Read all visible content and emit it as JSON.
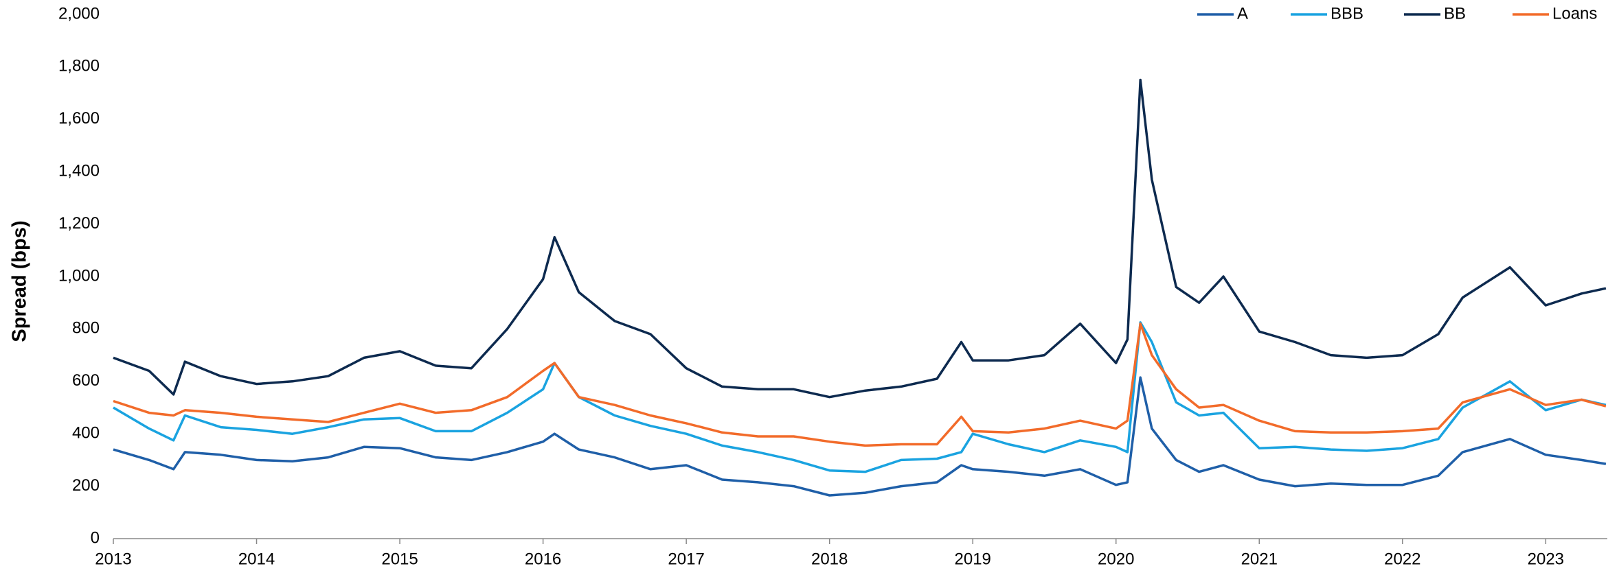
{
  "chart_data": {
    "type": "line",
    "y_label": "Spread (bps)",
    "x": [
      2013,
      2013.25,
      2013.42,
      2013.5,
      2013.75,
      2014,
      2014.25,
      2014.5,
      2014.75,
      2015,
      2015.25,
      2015.5,
      2015.75,
      2016,
      2016.08,
      2016.25,
      2016.5,
      2016.75,
      2017,
      2017.25,
      2017.5,
      2017.75,
      2018,
      2018.25,
      2018.5,
      2018.75,
      2018.92,
      2019,
      2019.25,
      2019.5,
      2019.75,
      2020,
      2020.08,
      2020.17,
      2020.25,
      2020.42,
      2020.58,
      2020.75,
      2021,
      2021.25,
      2021.5,
      2021.75,
      2022,
      2022.25,
      2022.42,
      2022.75,
      2023,
      2023.25,
      2023.42
    ],
    "series": [
      {
        "name": "A",
        "color": "#1f5fa8",
        "values": [
          340,
          300,
          265,
          330,
          320,
          300,
          295,
          310,
          350,
          345,
          310,
          300,
          330,
          370,
          400,
          340,
          310,
          265,
          280,
          225,
          215,
          200,
          165,
          175,
          200,
          215,
          280,
          265,
          255,
          240,
          265,
          205,
          215,
          615,
          420,
          300,
          255,
          280,
          225,
          200,
          210,
          205,
          205,
          240,
          330,
          380,
          320,
          300,
          285
        ]
      },
      {
        "name": "BBB",
        "color": "#1aa3e0",
        "values": [
          500,
          420,
          375,
          470,
          425,
          415,
          400,
          425,
          455,
          460,
          410,
          410,
          480,
          570,
          670,
          540,
          470,
          430,
          400,
          355,
          330,
          300,
          260,
          255,
          300,
          305,
          330,
          400,
          360,
          330,
          375,
          350,
          330,
          825,
          750,
          520,
          470,
          480,
          345,
          350,
          340,
          335,
          345,
          380,
          500,
          600,
          490,
          530,
          510
        ]
      },
      {
        "name": "BB",
        "color": "#0d2a4f",
        "values": [
          690,
          640,
          550,
          675,
          620,
          590,
          600,
          620,
          690,
          715,
          660,
          650,
          800,
          990,
          1150,
          940,
          830,
          780,
          650,
          580,
          570,
          570,
          540,
          565,
          580,
          610,
          750,
          680,
          680,
          700,
          820,
          670,
          760,
          1750,
          1370,
          960,
          900,
          1000,
          790,
          750,
          700,
          690,
          700,
          780,
          920,
          1035,
          890,
          935,
          955
        ]
      },
      {
        "name": "Loans",
        "color": "#f26b2a",
        "values": [
          525,
          480,
          470,
          490,
          480,
          465,
          455,
          445,
          480,
          515,
          480,
          490,
          540,
          640,
          670,
          540,
          510,
          470,
          440,
          405,
          390,
          390,
          370,
          355,
          360,
          360,
          465,
          410,
          405,
          420,
          450,
          420,
          450,
          820,
          700,
          570,
          500,
          510,
          450,
          410,
          405,
          405,
          410,
          420,
          520,
          570,
          510,
          530,
          505
        ]
      }
    ],
    "xlim": [
      2013,
      2023.43
    ],
    "xticks": [
      2013,
      2014,
      2015,
      2016,
      2017,
      2018,
      2019,
      2020,
      2021,
      2022,
      2023
    ],
    "ylim": [
      0,
      2000
    ],
    "yticks": [
      0,
      200,
      400,
      600,
      800,
      {
        "value": 1000,
        "label": "1,000"
      },
      {
        "value": 1200,
        "label": "1,200"
      },
      {
        "value": 1400,
        "label": "1,400"
      },
      {
        "value": 1600,
        "label": "1,600"
      },
      {
        "value": 1800,
        "label": "1,800"
      },
      {
        "value": 2000,
        "label": "2,000"
      }
    ],
    "grid": false,
    "legend": "top-right"
  }
}
